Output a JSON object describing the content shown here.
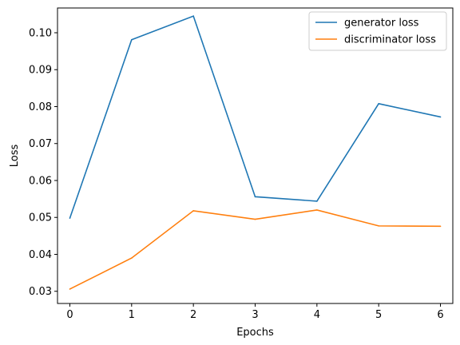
{
  "chart_data": {
    "type": "line",
    "x": [
      0,
      1,
      2,
      3,
      4,
      5,
      6
    ],
    "xlabel": "Epochs",
    "ylabel": "Loss",
    "xlim": [
      -0.2,
      6.2
    ],
    "ylim": [
      0.0267,
      0.1067
    ],
    "xticks": [
      0,
      1,
      2,
      3,
      4,
      5,
      6
    ],
    "yticks": [
      0.03,
      0.04,
      0.05,
      0.06,
      0.07,
      0.08,
      0.09,
      0.1
    ],
    "ytick_labels": [
      "0.03",
      "0.04",
      "0.05",
      "0.06",
      "0.07",
      "0.08",
      "0.09",
      "0.10"
    ],
    "grid": false,
    "legend_position": "top-right",
    "series": [
      {
        "name": "generator loss",
        "color": "#1f77b4",
        "values": [
          0.0498,
          0.0981,
          0.1045,
          0.0556,
          0.0544,
          0.0808,
          0.0772
        ]
      },
      {
        "name": "discriminator loss",
        "color": "#ff7f0e",
        "values": [
          0.0306,
          0.039,
          0.0518,
          0.0495,
          0.052,
          0.0477,
          0.0476
        ]
      }
    ]
  }
}
